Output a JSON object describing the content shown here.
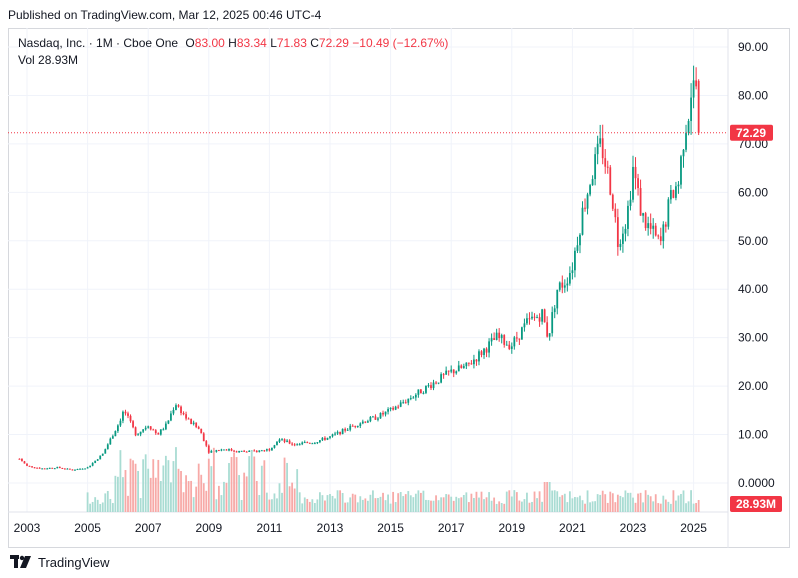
{
  "header": {
    "published": "Published on TradingView.com, Mar 12, 2025 00:46 UTC-4"
  },
  "legend": {
    "symbol": "Nasdaq, Inc. · 1M · Cboe One",
    "o_label": "O",
    "o_value": "83.00",
    "h_label": "H",
    "h_value": "83.34",
    "l_label": "L",
    "l_value": "71.83",
    "c_label": "C",
    "c_value": "72.29",
    "change": "−10.49 (−12.67%)",
    "vol_label": "Vol",
    "vol_value": "28.93M"
  },
  "footer": {
    "brand": "TradingView"
  },
  "colors": {
    "up": "#089981",
    "down": "#f23645",
    "up_vol": "#a9dcd3",
    "down_vol": "#f7a9a7",
    "grid": "#f0f3fa",
    "text": "#131722"
  },
  "chart_data": {
    "type": "candlestick",
    "interval": "1M",
    "y_ticks": [
      "90.00",
      "80.00",
      "70.00",
      "60.00",
      "50.00",
      "40.00",
      "30.00",
      "20.00",
      "10.00",
      "0.0000"
    ],
    "x_ticks": [
      "2003",
      "2005",
      "2007",
      "2009",
      "2011",
      "2013",
      "2015",
      "2017",
      "2019",
      "2021",
      "2023",
      "2025"
    ],
    "ylim": [
      0,
      90
    ],
    "last_price_label": "72.29",
    "last_price": 72.29,
    "last_volume_label": "28.93M",
    "price_path": [
      [
        2002.75,
        5.0
      ],
      [
        2003.0,
        3.5
      ],
      [
        2003.5,
        3.0
      ],
      [
        2004.0,
        3.2
      ],
      [
        2004.5,
        2.7
      ],
      [
        2005.0,
        3.2
      ],
      [
        2005.5,
        6.0
      ],
      [
        2006.0,
        12.0
      ],
      [
        2006.2,
        15.0
      ],
      [
        2006.6,
        10.0
      ],
      [
        2007.0,
        12.0
      ],
      [
        2007.3,
        10.0
      ],
      [
        2007.6,
        12.0
      ],
      [
        2007.9,
        16.5
      ],
      [
        2008.3,
        13.0
      ],
      [
        2008.7,
        11.0
      ],
      [
        2009.0,
        6.5
      ],
      [
        2009.5,
        7.0
      ],
      [
        2010.0,
        6.5
      ],
      [
        2010.5,
        6.5
      ],
      [
        2011.0,
        7.0
      ],
      [
        2011.3,
        9.0
      ],
      [
        2011.8,
        8.0
      ],
      [
        2012.5,
        8.5
      ],
      [
        2013.0,
        9.5
      ],
      [
        2013.5,
        11.0
      ],
      [
        2014.0,
        12.5
      ],
      [
        2014.5,
        13.5
      ],
      [
        2015.0,
        15.0
      ],
      [
        2015.5,
        17.0
      ],
      [
        2016.0,
        19.0
      ],
      [
        2016.5,
        21.0
      ],
      [
        2017.0,
        23.0
      ],
      [
        2017.5,
        24.0
      ],
      [
        2018.0,
        27.0
      ],
      [
        2018.5,
        30.0
      ],
      [
        2018.8,
        29.0
      ],
      [
        2019.0,
        28.5
      ],
      [
        2019.5,
        33.0
      ],
      [
        2020.0,
        35.0
      ],
      [
        2020.2,
        30.0
      ],
      [
        2020.5,
        40.0
      ],
      [
        2020.8,
        42.0
      ],
      [
        2021.0,
        45.0
      ],
      [
        2021.3,
        55.0
      ],
      [
        2021.6,
        63.0
      ],
      [
        2021.95,
        70.0
      ],
      [
        2022.3,
        60.0
      ],
      [
        2022.5,
        50.0
      ],
      [
        2022.8,
        55.0
      ],
      [
        2023.0,
        65.0
      ],
      [
        2023.3,
        55.0
      ],
      [
        2023.6,
        52.0
      ],
      [
        2023.9,
        49.0
      ],
      [
        2024.1,
        55.0
      ],
      [
        2024.3,
        60.0
      ],
      [
        2024.5,
        62.0
      ],
      [
        2024.7,
        73.0
      ],
      [
        2024.85,
        77.0
      ],
      [
        2024.95,
        83.0
      ],
      [
        2025.05,
        80.0
      ],
      [
        2025.1,
        83.0
      ],
      [
        2025.2,
        72.29
      ]
    ]
  }
}
